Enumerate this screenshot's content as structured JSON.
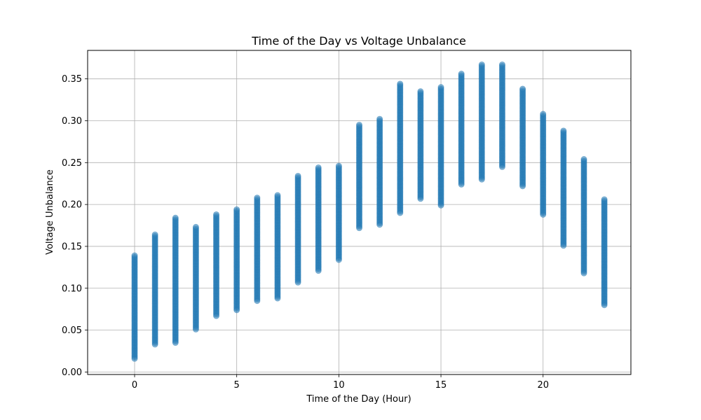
{
  "chart_data": {
    "type": "scatter",
    "title": "Time of the Day vs Voltage Unbalance",
    "xlabel": "Time of the Day (Hour)",
    "ylabel": "Voltage Unbalance",
    "xlim": [
      -2.3,
      24.3
    ],
    "ylim": [
      -0.003,
      0.384
    ],
    "x_ticks": [
      0,
      5,
      10,
      15,
      20
    ],
    "x_tick_labels": [
      "0",
      "5",
      "10",
      "15",
      "20"
    ],
    "y_ticks": [
      0.0,
      0.05,
      0.1,
      0.15,
      0.2,
      0.25,
      0.3,
      0.35
    ],
    "y_tick_labels": [
      "0.00",
      "0.05",
      "0.10",
      "0.15",
      "0.20",
      "0.25",
      "0.30",
      "0.35"
    ],
    "grid": true,
    "marker_color": "#1f77b4",
    "marker_alpha": 0.5,
    "hour_ranges": [
      {
        "x": 0,
        "min": 0.016,
        "max": 0.139
      },
      {
        "x": 1,
        "min": 0.033,
        "max": 0.164
      },
      {
        "x": 2,
        "min": 0.035,
        "max": 0.184
      },
      {
        "x": 3,
        "min": 0.051,
        "max": 0.173
      },
      {
        "x": 4,
        "min": 0.067,
        "max": 0.188
      },
      {
        "x": 5,
        "min": 0.074,
        "max": 0.194
      },
      {
        "x": 6,
        "min": 0.085,
        "max": 0.208
      },
      {
        "x": 7,
        "min": 0.088,
        "max": 0.211
      },
      {
        "x": 8,
        "min": 0.107,
        "max": 0.234
      },
      {
        "x": 9,
        "min": 0.121,
        "max": 0.244
      },
      {
        "x": 10,
        "min": 0.134,
        "max": 0.246
      },
      {
        "x": 11,
        "min": 0.172,
        "max": 0.295
      },
      {
        "x": 12,
        "min": 0.176,
        "max": 0.302
      },
      {
        "x": 13,
        "min": 0.19,
        "max": 0.344
      },
      {
        "x": 14,
        "min": 0.207,
        "max": 0.335
      },
      {
        "x": 15,
        "min": 0.199,
        "max": 0.34
      },
      {
        "x": 16,
        "min": 0.224,
        "max": 0.356
      },
      {
        "x": 17,
        "min": 0.23,
        "max": 0.367
      },
      {
        "x": 18,
        "min": 0.245,
        "max": 0.367
      },
      {
        "x": 19,
        "min": 0.222,
        "max": 0.338
      },
      {
        "x": 20,
        "min": 0.188,
        "max": 0.308
      },
      {
        "x": 21,
        "min": 0.151,
        "max": 0.288
      },
      {
        "x": 22,
        "min": 0.118,
        "max": 0.254
      },
      {
        "x": 23,
        "min": 0.08,
        "max": 0.206
      }
    ]
  }
}
